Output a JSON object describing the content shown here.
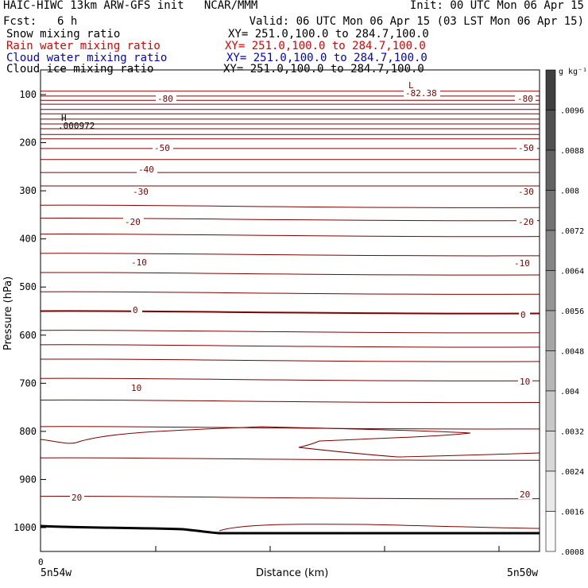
{
  "header": {
    "line1_left": "HAIC-HIWC 13km ARW-GFS init   NCAR/MMM",
    "line1_right": "Init: 00 UTC Mon 06 Apr 15",
    "fcst_label": "Fcst:",
    "fcst_value": "6 h",
    "valid": "Valid: 06 UTC Mon 06 Apr 15 (03 LST Mon 06 Apr 15)"
  },
  "fields": [
    {
      "name": "Snow mixing ratio",
      "xy": "XY= 251.0,100.0 to 284.7,100.0",
      "color": "#000000"
    },
    {
      "name": "Rain water mixing ratio",
      "xy": "XY= 251.0,100.0 to 284.7,100.0",
      "color": "#ff0000"
    },
    {
      "name": "Cloud water mixing ratio",
      "xy": "XY= 251.0,100.0 to 284.7,100.0",
      "color": "#0000cc"
    },
    {
      "name": "Cloud ice mixing ratio",
      "xy": "XY= 251.0,100.0 to 284.7,100.0",
      "color": "#000000"
    }
  ],
  "chart_data": {
    "type": "contour",
    "ylabel": "Pressure (hPa)",
    "xlabel": "Distance (km)",
    "x_tick_label": "0",
    "x_endpoint_left": "5n54w",
    "x_endpoint_right": "5n50w",
    "y_ticks": [
      100,
      200,
      300,
      400,
      500,
      600,
      700,
      800,
      900,
      1000
    ],
    "ylim": [
      50,
      1050
    ],
    "contour_color": "#800000",
    "temperature_contours": [
      {
        "label": "-80",
        "pressure": 120
      },
      {
        "label": "-50",
        "pressure": 192
      },
      {
        "label": "-40",
        "pressure": 235
      },
      {
        "label": "-30",
        "pressure": 290
      },
      {
        "label": "-20",
        "pressure": 357
      },
      {
        "label": "-10",
        "pressure": 430
      },
      {
        "label": "0",
        "pressure": 550
      },
      {
        "label": "10",
        "pressure": 690
      },
      {
        "label": "20",
        "pressure": 935
      }
    ],
    "extrema": [
      {
        "marker": "L",
        "value": "-82.38"
      },
      {
        "marker": "H",
        "value": ".000972"
      }
    ],
    "colorbar": {
      "unit": "g kg⁻¹",
      "labels": [
        ".0096",
        ".0088",
        ".008",
        ".0072",
        ".0064",
        ".0056",
        ".0048",
        ".004",
        ".0032",
        ".0024",
        ".0016",
        ".0008"
      ]
    }
  }
}
